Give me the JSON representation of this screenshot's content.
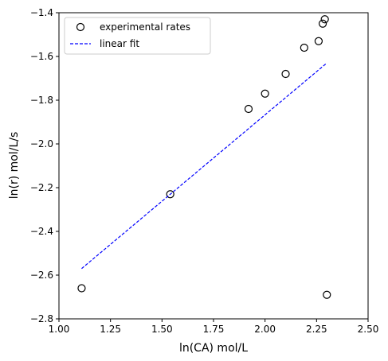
{
  "chart_data": {
    "type": "scatter",
    "title": "",
    "xlabel": "ln(CA) mol/L",
    "ylabel": "ln(r) mol/L/s",
    "xlim": [
      1.0,
      2.5
    ],
    "ylim": [
      -2.8,
      -1.4
    ],
    "xticks": [
      1.0,
      1.25,
      1.5,
      1.75,
      2.0,
      2.25,
      2.5
    ],
    "xtick_labels": [
      "1.00",
      "1.25",
      "1.50",
      "1.75",
      "2.00",
      "2.25",
      "2.50"
    ],
    "yticks": [
      -2.8,
      -2.6,
      -2.4,
      -2.2,
      -2.0,
      -1.8,
      -1.6,
      -1.4
    ],
    "ytick_labels": [
      "−2.8",
      "−2.6",
      "−2.4",
      "−2.2",
      "−2.0",
      "−1.8",
      "−1.6",
      "−1.4"
    ],
    "grid": false,
    "legend_position": "upper-left",
    "series": [
      {
        "name": "experimental rates",
        "kind": "scatter",
        "marker": "open-circle",
        "color": "#000000",
        "points": [
          [
            1.11,
            -2.66
          ],
          [
            1.54,
            -2.23
          ],
          [
            1.92,
            -1.84
          ],
          [
            2.0,
            -1.77
          ],
          [
            2.1,
            -1.68
          ],
          [
            2.19,
            -1.56
          ],
          [
            2.26,
            -1.53
          ],
          [
            2.28,
            -1.45
          ],
          [
            2.29,
            -1.43
          ],
          [
            2.3,
            -2.69
          ]
        ]
      },
      {
        "name": "linear fit",
        "kind": "line",
        "style": "dashed",
        "color": "#0000ff",
        "points": [
          [
            1.11,
            -2.57
          ],
          [
            2.3,
            -1.63
          ]
        ]
      }
    ]
  }
}
